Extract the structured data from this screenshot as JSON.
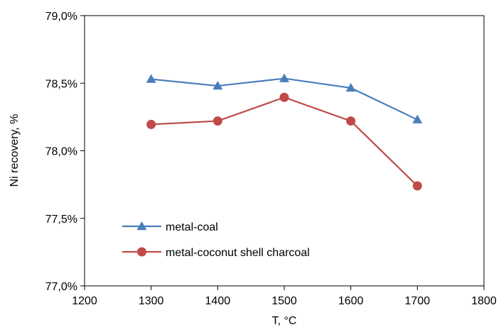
{
  "chart_data": {
    "type": "line",
    "xlabel": "T, °C",
    "ylabel": "Ni recovery, %",
    "xlim": [
      1200,
      1800
    ],
    "ylim": [
      77.0,
      79.0
    ],
    "x_ticks": [
      "1200",
      "1300",
      "1400",
      "1500",
      "1600",
      "1700",
      "1800"
    ],
    "y_ticks": [
      "77,0%",
      "77,5%",
      "78,0%",
      "78,5%",
      "79,0%"
    ],
    "x": [
      1300,
      1400,
      1500,
      1600,
      1700
    ],
    "series": [
      {
        "name": "metal-coal",
        "marker": "triangle",
        "color": "#4a7ebb",
        "values": [
          78.53,
          78.48,
          78.535,
          78.465,
          78.23
        ]
      },
      {
        "name": "metal-coconut shell charcoal",
        "marker": "circle",
        "color": "#be4b48",
        "values": [
          78.195,
          78.22,
          78.395,
          78.22,
          77.74
        ]
      }
    ],
    "grid": false,
    "legend_position": "lower-left"
  }
}
